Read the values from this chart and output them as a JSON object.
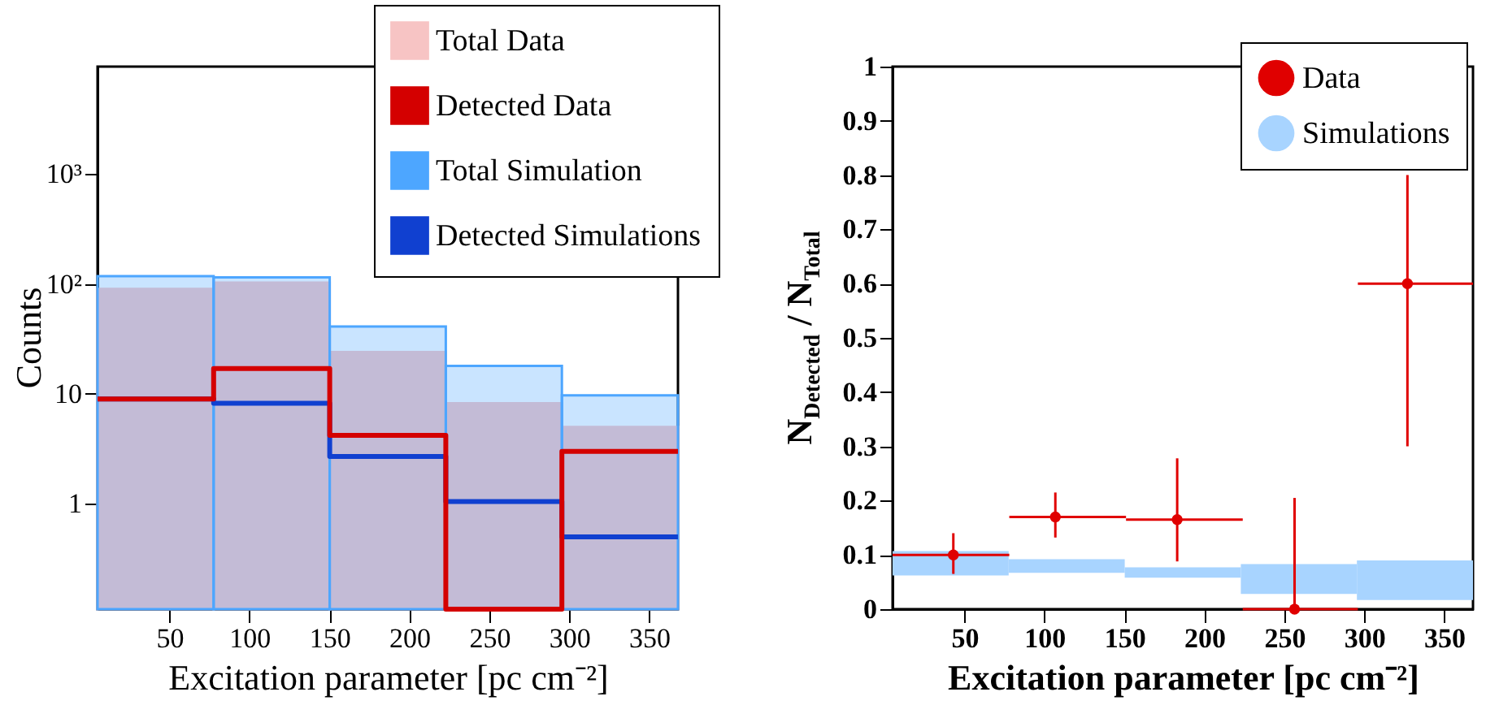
{
  "chart_data": [
    {
      "type": "histogram",
      "bins": [
        5,
        77.6,
        150.2,
        222.8,
        295.4,
        368
      ],
      "xlim": [
        5,
        368
      ],
      "xticks": [
        50,
        100,
        150,
        200,
        250,
        300,
        350
      ],
      "ylim": [
        0.11,
        9500
      ],
      "log": true,
      "yticks": [
        1,
        10,
        {
          "value": 100,
          "label": "10²"
        },
        {
          "value": 1000,
          "label": "10³"
        }
      ],
      "xlabel": "Excitation parameter [pc cm⁻²]",
      "ylabel": "Counts",
      "legend": "top right",
      "series": [
        {
          "name": "Total Data",
          "color": "#f7c4c4",
          "values": [
            90,
            103,
            24,
            8.2,
            5
          ]
        },
        {
          "name": "Detected Data",
          "type": "step",
          "color": "#d40000",
          "x": [
            5,
            77.6,
            150.2,
            222.8,
            295.4,
            368
          ],
          "values": [
            9,
            17,
            4.2,
            0.11,
            3,
            3
          ]
        },
        {
          "name": "Total Simulation",
          "color": "#4da6ff",
          "values": [
            118,
            115,
            41,
            18,
            9.7
          ]
        },
        {
          "name": "Detected Simulations",
          "type": "step",
          "color": "#1040d0",
          "x": [
            5,
            77.6,
            150.2,
            222.8,
            295.4,
            368
          ],
          "values": [
            9,
            8.2,
            2.7,
            1.05,
            0.5,
            0.5
          ]
        }
      ]
    },
    {
      "type": "scatter",
      "xlim": [
        5,
        368
      ],
      "xticks": [
        50,
        100,
        150,
        200,
        250,
        300,
        350
      ],
      "ylim": [
        0,
        1
      ],
      "yticks": [
        {
          "value": 0,
          "label": "0"
        },
        0.1,
        0.2,
        0.3,
        0.4,
        0.5,
        0.6,
        0.7,
        0.8,
        0.9,
        {
          "value": 1,
          "label": "1"
        }
      ],
      "xlabel": "Excitation parameter [pc cm⁻²]",
      "ylabel": "N$_{Detected}$ / N$_{Total}$",
      "legend": "top right",
      "marker": "circle",
      "series": [
        {
          "name": "Data",
          "color": "#e00000",
          "x": [
            43,
            106.8,
            183,
            256.4,
            327
          ],
          "values": [
            0.1,
            0.17,
            0.165,
            0,
            0.6
          ],
          "errors": [
            [
              0.065,
              0.14
            ],
            [
              0.132,
              0.215
            ],
            [
              0.088,
              0.278
            ],
            [
              0,
              0.205
            ],
            [
              0.3,
              0.8
            ]
          ],
          "xerrors": [
            [
              5,
              78
            ],
            [
              78,
              151
            ],
            [
              151,
              224
            ],
            [
              224,
              296
            ],
            [
              296,
              368
            ]
          ]
        },
        {
          "name": "Simulations",
          "type": "bar",
          "color": "#a8d4ff",
          "x": [
            41.3,
            113.9,
            186.5,
            259.1,
            331.7
          ],
          "base": [
            0.062,
            0.067,
            0.058,
            0.028,
            0.017
          ],
          "values": [
            0.045,
            0.025,
            0.019,
            0.055,
            0.073
          ]
        }
      ]
    }
  ]
}
